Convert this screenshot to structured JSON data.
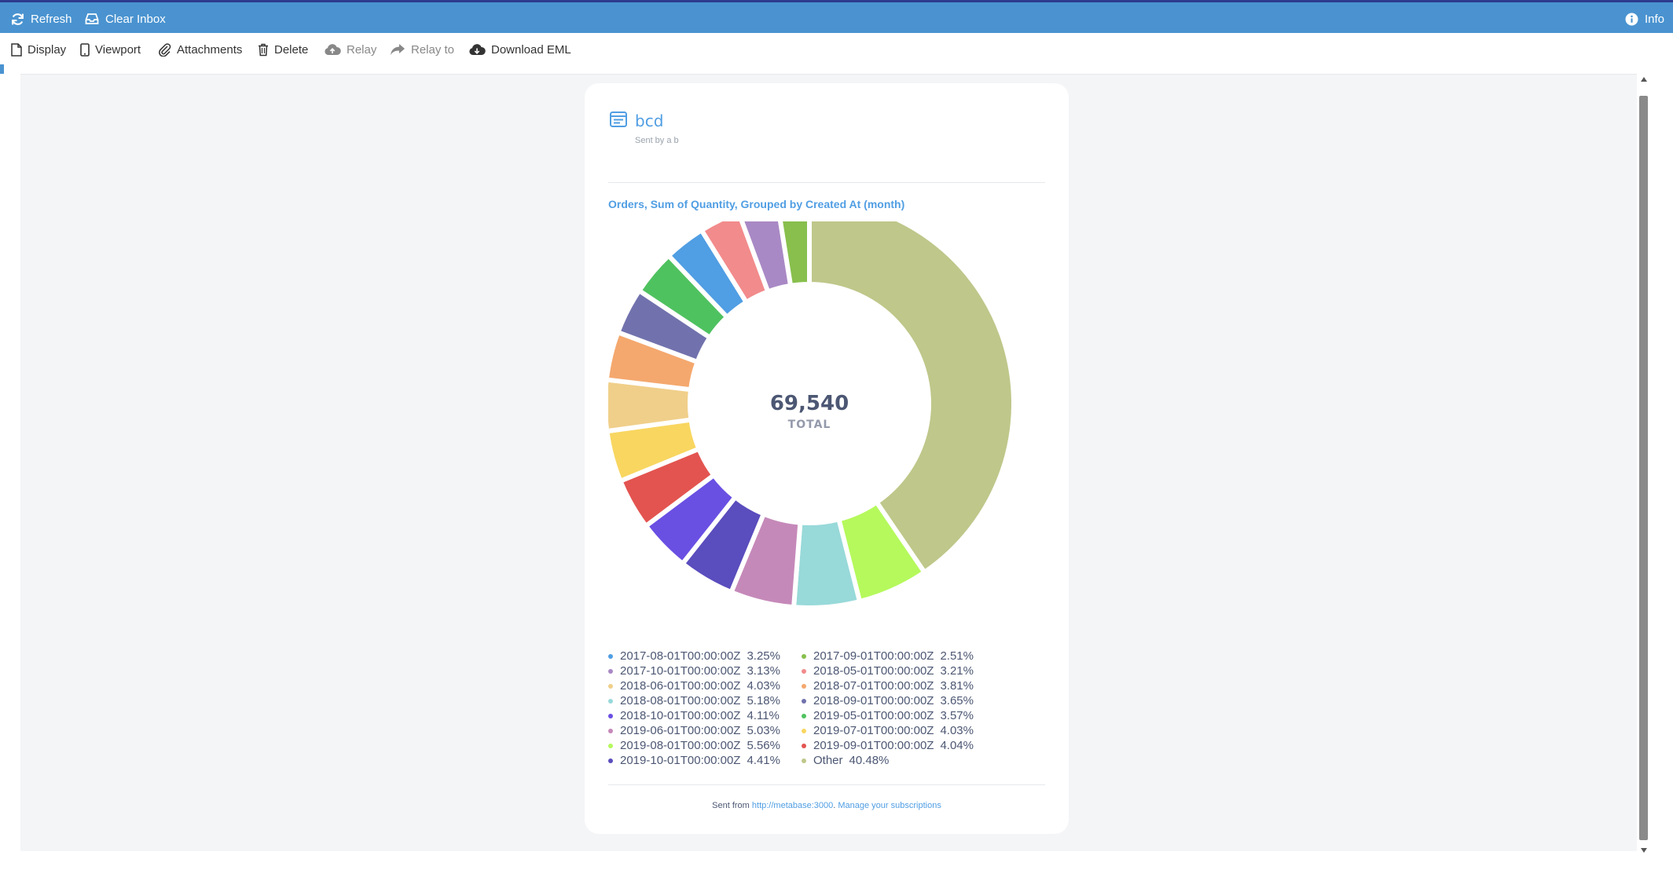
{
  "topbar": {
    "refresh_label": "Refresh",
    "clear_inbox_label": "Clear Inbox",
    "info_label": "Info"
  },
  "toolbar": {
    "display_label": "Display",
    "viewport_label": "Viewport",
    "attachments_label": "Attachments",
    "delete_label": "Delete",
    "relay_label": "Relay",
    "relay_to_label": "Relay to",
    "download_label": "Download EML"
  },
  "email": {
    "title": "bcd",
    "subtitle": "Sent by a b",
    "footer_prefix": "Sent from ",
    "footer_link": "http://metabase:3000",
    "footer_sep": ". ",
    "footer_manage": "Manage your subscriptions"
  },
  "chart_data": {
    "type": "pie",
    "title": "Orders, Sum of Quantity, Grouped by Created At (month)",
    "center_value": "69,540",
    "center_label": "TOTAL",
    "slices": [
      {
        "label": "Other",
        "percent_text": "40.48%",
        "value": 40.48,
        "color": "#bfc78a"
      },
      {
        "label": "2019-08-01T00:00:00Z",
        "percent_text": "5.56%",
        "value": 5.56,
        "color": "#b5f95c"
      },
      {
        "label": "2018-08-01T00:00:00Z",
        "percent_text": "5.18%",
        "value": 5.18,
        "color": "#98d9d9"
      },
      {
        "label": "2019-06-01T00:00:00Z",
        "percent_text": "5.03%",
        "value": 5.03,
        "color": "#c589b9"
      },
      {
        "label": "2019-10-01T00:00:00Z",
        "percent_text": "4.41%",
        "value": 4.41,
        "color": "#5a4dbd"
      },
      {
        "label": "2018-10-01T00:00:00Z",
        "percent_text": "4.11%",
        "value": 4.11,
        "color": "#6a4fe3"
      },
      {
        "label": "2019-09-01T00:00:00Z",
        "percent_text": "4.04%",
        "value": 4.04,
        "color": "#e35450"
      },
      {
        "label": "2019-07-01T00:00:00Z",
        "percent_text": "4.03%",
        "value": 4.03,
        "color": "#f8d660"
      },
      {
        "label": "2018-06-01T00:00:00Z",
        "percent_text": "4.03%",
        "value": 4.03,
        "color": "#f0cf8a"
      },
      {
        "label": "2018-07-01T00:00:00Z",
        "percent_text": "3.81%",
        "value": 3.81,
        "color": "#f4a86e"
      },
      {
        "label": "2018-09-01T00:00:00Z",
        "percent_text": "3.65%",
        "value": 3.65,
        "color": "#7172ad"
      },
      {
        "label": "2019-05-01T00:00:00Z",
        "percent_text": "3.57%",
        "value": 3.57,
        "color": "#4fc260"
      },
      {
        "label": "2017-08-01T00:00:00Z",
        "percent_text": "3.25%",
        "value": 3.25,
        "color": "#509ee3"
      },
      {
        "label": "2018-05-01T00:00:00Z",
        "percent_text": "3.21%",
        "value": 3.21,
        "color": "#f28b8c"
      },
      {
        "label": "2017-10-01T00:00:00Z",
        "percent_text": "3.13%",
        "value": 3.13,
        "color": "#a989c5"
      },
      {
        "label": "2017-09-01T00:00:00Z",
        "percent_text": "2.51%",
        "value": 2.51,
        "color": "#88bf4d"
      }
    ],
    "legend": [
      {
        "label": "2017-08-01T00:00:00Z",
        "percent_text": "3.25%",
        "color": "#509ee3"
      },
      {
        "label": "2017-09-01T00:00:00Z",
        "percent_text": "2.51%",
        "color": "#88bf4d"
      },
      {
        "label": "2017-10-01T00:00:00Z",
        "percent_text": "3.13%",
        "color": "#a989c5"
      },
      {
        "label": "2018-05-01T00:00:00Z",
        "percent_text": "3.21%",
        "color": "#f28b8c"
      },
      {
        "label": "2018-06-01T00:00:00Z",
        "percent_text": "4.03%",
        "color": "#f0cf8a"
      },
      {
        "label": "2018-07-01T00:00:00Z",
        "percent_text": "3.81%",
        "color": "#f4a86e"
      },
      {
        "label": "2018-08-01T00:00:00Z",
        "percent_text": "5.18%",
        "color": "#98d9d9"
      },
      {
        "label": "2018-09-01T00:00:00Z",
        "percent_text": "3.65%",
        "color": "#7172ad"
      },
      {
        "label": "2018-10-01T00:00:00Z",
        "percent_text": "4.11%",
        "color": "#6a4fe3"
      },
      {
        "label": "2019-05-01T00:00:00Z",
        "percent_text": "3.57%",
        "color": "#4fc260"
      },
      {
        "label": "2019-06-01T00:00:00Z",
        "percent_text": "5.03%",
        "color": "#c589b9"
      },
      {
        "label": "2019-07-01T00:00:00Z",
        "percent_text": "4.03%",
        "color": "#f8d660"
      },
      {
        "label": "2019-08-01T00:00:00Z",
        "percent_text": "5.56%",
        "color": "#b5f95c"
      },
      {
        "label": "2019-09-01T00:00:00Z",
        "percent_text": "4.04%",
        "color": "#e35450"
      },
      {
        "label": "2019-10-01T00:00:00Z",
        "percent_text": "4.41%",
        "color": "#5a4dbd"
      },
      {
        "label": "Other",
        "percent_text": "40.48%",
        "color": "#bfc78a"
      }
    ]
  }
}
